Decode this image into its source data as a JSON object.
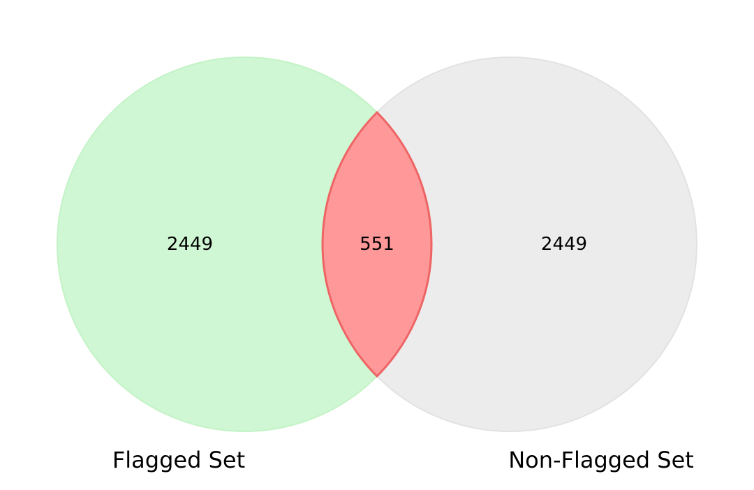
{
  "sets": [
    {
      "label": "Flagged Set",
      "only_count": "2449",
      "color": "#90ee90"
    },
    {
      "label": "Non-Flagged Set",
      "only_count": "2449",
      "color": "#d3d3d3"
    }
  ],
  "intersection": {
    "count": "551",
    "color": "#ff0000"
  },
  "background": "#ffffff"
}
